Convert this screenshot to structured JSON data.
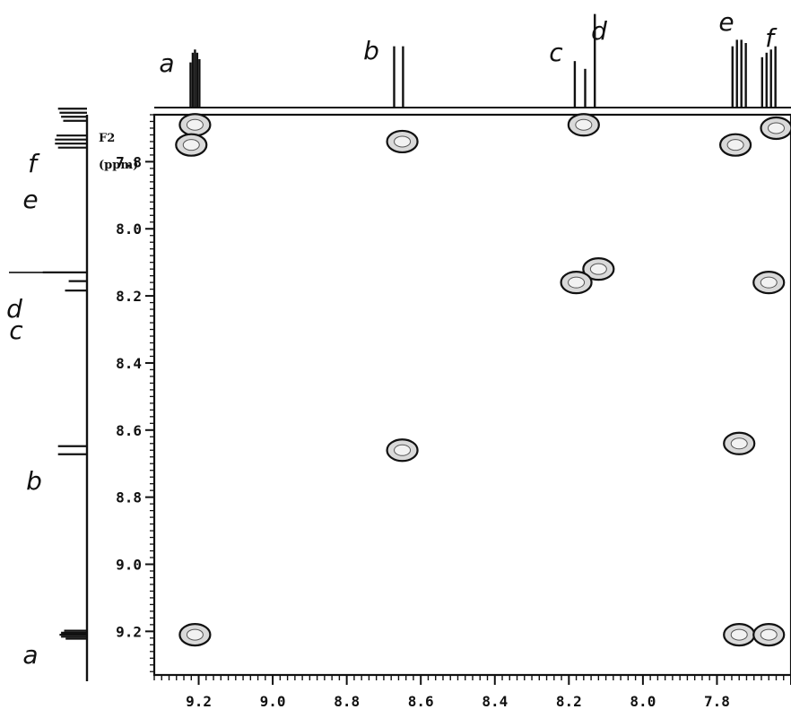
{
  "chart_data": {
    "type": "scatter",
    "title": "",
    "subtitle": "",
    "xlabel": "",
    "ylabel": "F2 (ppm)",
    "xlim": [
      9.32,
      7.6
    ],
    "ylim": [
      7.66,
      9.33
    ],
    "x_ticks": [
      9.2,
      9.0,
      8.8,
      8.6,
      8.4,
      8.2,
      8.0,
      7.8
    ],
    "x_tick_labels": [
      "9.2",
      "9.0",
      "8.8",
      "8.6",
      "8.4",
      "8.2",
      "8.0",
      "7.8"
    ],
    "y_ticks": [
      7.8,
      8.0,
      8.2,
      8.4,
      8.6,
      8.8,
      9.0,
      9.2
    ],
    "y_tick_labels": [
      "7.8",
      "8.0",
      "8.2",
      "8.4",
      "8.6",
      "8.8",
      "9.0",
      "9.2"
    ],
    "grid": false,
    "legend": "none",
    "peaks": [
      {
        "label": "a",
        "shift": 9.21
      },
      {
        "label": "b",
        "shift": 8.66
      },
      {
        "label": "c",
        "shift": 8.17
      },
      {
        "label": "d",
        "shift": 8.13
      },
      {
        "label": "e",
        "shift": 7.74
      },
      {
        "label": "f",
        "shift": 7.66
      }
    ],
    "cross_peaks": [
      {
        "x": 9.21,
        "y": 7.69
      },
      {
        "x": 9.22,
        "y": 7.75
      },
      {
        "x": 8.65,
        "y": 7.74
      },
      {
        "x": 8.16,
        "y": 7.69
      },
      {
        "x": 7.64,
        "y": 7.7
      },
      {
        "x": 7.75,
        "y": 7.75
      },
      {
        "x": 8.12,
        "y": 8.12
      },
      {
        "x": 8.18,
        "y": 8.16
      },
      {
        "x": 7.66,
        "y": 8.16
      },
      {
        "x": 8.65,
        "y": 8.66
      },
      {
        "x": 7.74,
        "y": 8.64
      },
      {
        "x": 9.21,
        "y": 9.21
      },
      {
        "x": 7.74,
        "y": 9.21
      },
      {
        "x": 7.66,
        "y": 9.21
      }
    ],
    "colors": {
      "ink": "#111111",
      "contour_fill": "#d9d9d9"
    }
  }
}
